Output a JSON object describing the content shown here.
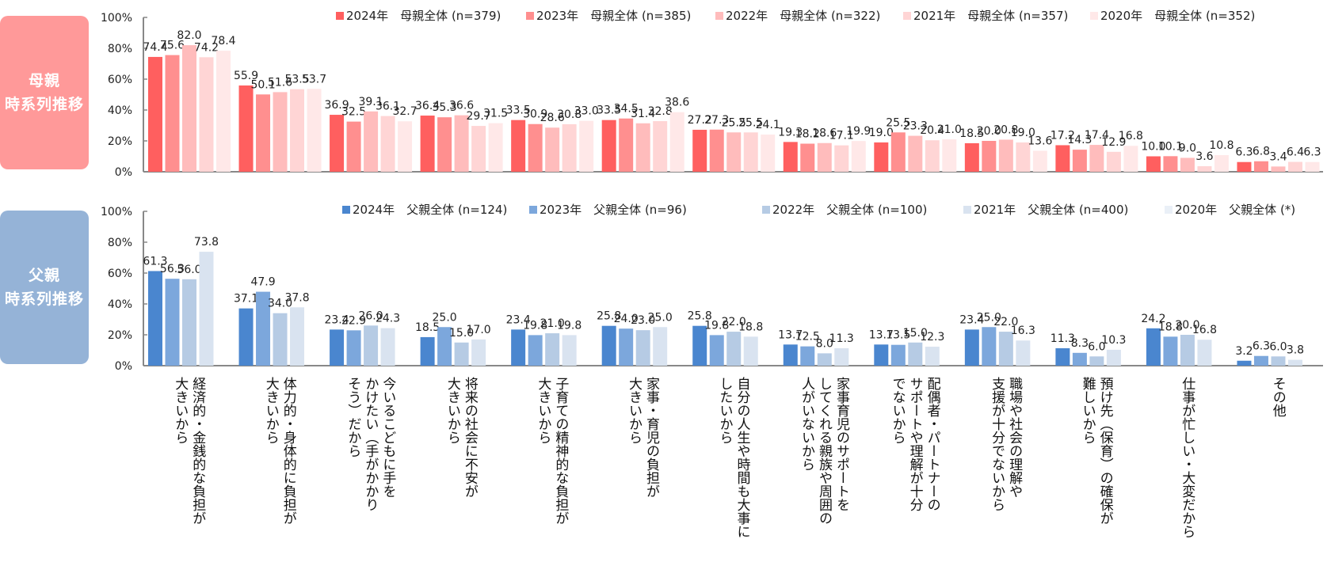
{
  "side_labels": {
    "mother": [
      "母親",
      "時系列推移"
    ],
    "father": [
      "父親",
      "時系列推移"
    ]
  },
  "chart_data": [
    {
      "type": "bar",
      "name": "mother",
      "title": "母親 時系列推移",
      "ylim": [
        0,
        100
      ],
      "yticks": [
        "0%",
        "20%",
        "40%",
        "60%",
        "80%",
        "100%"
      ],
      "legend_position": "top-right",
      "categories": [
        "経済的・金銭的な負担が\n大きいから",
        "体力的・身体的に負担が\n大きいから",
        "今いるこどもに手を\nかけたい（手がかかり\nそう）だから",
        "将来の社会に不安が\n大きいから",
        "子育ての精神的な負担が\n大きいから",
        "家事・育児の負担が\n大きいから",
        "自分の人生や時間も大事に\nしたいから",
        "家事育児のサポートを\nしてくれる親族や周囲の\n人がいないから",
        "配偶者・パートナーの\nサポートや理解が十分\nでないから",
        "職場や社会の理解や\n支援が十分でないから",
        "預け先（保育）の確保が\n難しいから",
        "仕事が忙しい・大変だから",
        "その他"
      ],
      "series": [
        {
          "name": "2024年　母親全体 (n=379)",
          "color": "#ff5f5f",
          "values": [
            74.4,
            55.9,
            36.9,
            36.4,
            33.5,
            33.5,
            27.2,
            19.3,
            19.0,
            18.5,
            17.2,
            10.0,
            6.3
          ]
        },
        {
          "name": "2023年　母親全体 (n=385)",
          "color": "#ff8f8f",
          "values": [
            75.6,
            50.1,
            32.5,
            35.3,
            30.9,
            34.5,
            27.3,
            18.2,
            25.5,
            20.0,
            14.3,
            10.1,
            6.8
          ]
        },
        {
          "name": "2022年　母親全体 (n=322)",
          "color": "#ffbcbc",
          "values": [
            82.0,
            51.6,
            39.1,
            36.6,
            28.6,
            31.4,
            25.5,
            18.6,
            23.3,
            20.8,
            17.4,
            9.0,
            3.4
          ]
        },
        {
          "name": "2021年　母親全体 (n=357)",
          "color": "#ffd5d5",
          "values": [
            74.2,
            53.5,
            36.1,
            29.7,
            30.8,
            32.8,
            25.5,
            17.1,
            20.4,
            19.0,
            12.9,
            3.6,
            6.4
          ]
        },
        {
          "name": "2020年　母親全体 (n=352)",
          "color": "#ffe8e8",
          "values": [
            78.4,
            53.7,
            32.7,
            31.5,
            33.0,
            38.6,
            24.1,
            19.9,
            21.0,
            13.6,
            16.8,
            10.8,
            6.3
          ]
        }
      ]
    },
    {
      "type": "bar",
      "name": "father",
      "title": "父親 時系列推移",
      "ylim": [
        0,
        100
      ],
      "yticks": [
        "0%",
        "20%",
        "40%",
        "60%",
        "80%",
        "100%"
      ],
      "legend_position": "top-right",
      "categories": [
        "経済的・金銭的な負担が\n大きいから",
        "体力的・身体的に負担が\n大きいから",
        "今いるこどもに手を\nかけたい（手がかかり\nそう）だから",
        "将来の社会に不安が\n大きいから",
        "子育ての精神的な負担が\n大きいから",
        "家事・育児の負担が\n大きいから",
        "自分の人生や時間も大事に\nしたいから",
        "家事育児のサポートを\nしてくれる親族や周囲の\n人がいないから",
        "配偶者・パートナーの\nサポートや理解が十分\nでないから",
        "職場や社会の理解や\n支援が十分でないから",
        "預け先（保育）の確保が\n難しいから",
        "仕事が忙しい・大変だから",
        "その他"
      ],
      "series": [
        {
          "name": "2024年　父親全体 (n=124)",
          "color": "#4a86cf",
          "values": [
            61.3,
            37.1,
            23.4,
            18.5,
            23.4,
            25.8,
            25.8,
            13.7,
            13.7,
            23.4,
            11.3,
            24.2,
            3.2
          ]
        },
        {
          "name": "2023年　父親全体 (n=96)",
          "color": "#7ca7dc",
          "values": [
            56.3,
            47.9,
            22.9,
            25.0,
            19.8,
            24.0,
            19.8,
            12.5,
            13.5,
            25.0,
            8.3,
            18.8,
            6.3
          ]
        },
        {
          "name": "2022年　父親全体 (n=100)",
          "color": "#b6cbe4",
          "values": [
            56.0,
            34.0,
            26.0,
            15.0,
            21.0,
            23.0,
            22.0,
            8.0,
            15.0,
            22.0,
            6.0,
            20.0,
            6.0
          ]
        },
        {
          "name": "2021年　父親全体 (n=400)",
          "color": "#d9e3f0",
          "values": [
            73.8,
            37.8,
            24.3,
            17.0,
            19.8,
            25.0,
            18.8,
            11.3,
            12.3,
            16.3,
            10.3,
            16.8,
            3.8
          ]
        },
        {
          "name": "2020年　父親全体 (*)",
          "color": "#eaf0f7",
          "values": [
            null,
            null,
            null,
            null,
            null,
            null,
            null,
            null,
            null,
            null,
            null,
            null,
            null
          ]
        }
      ]
    }
  ]
}
